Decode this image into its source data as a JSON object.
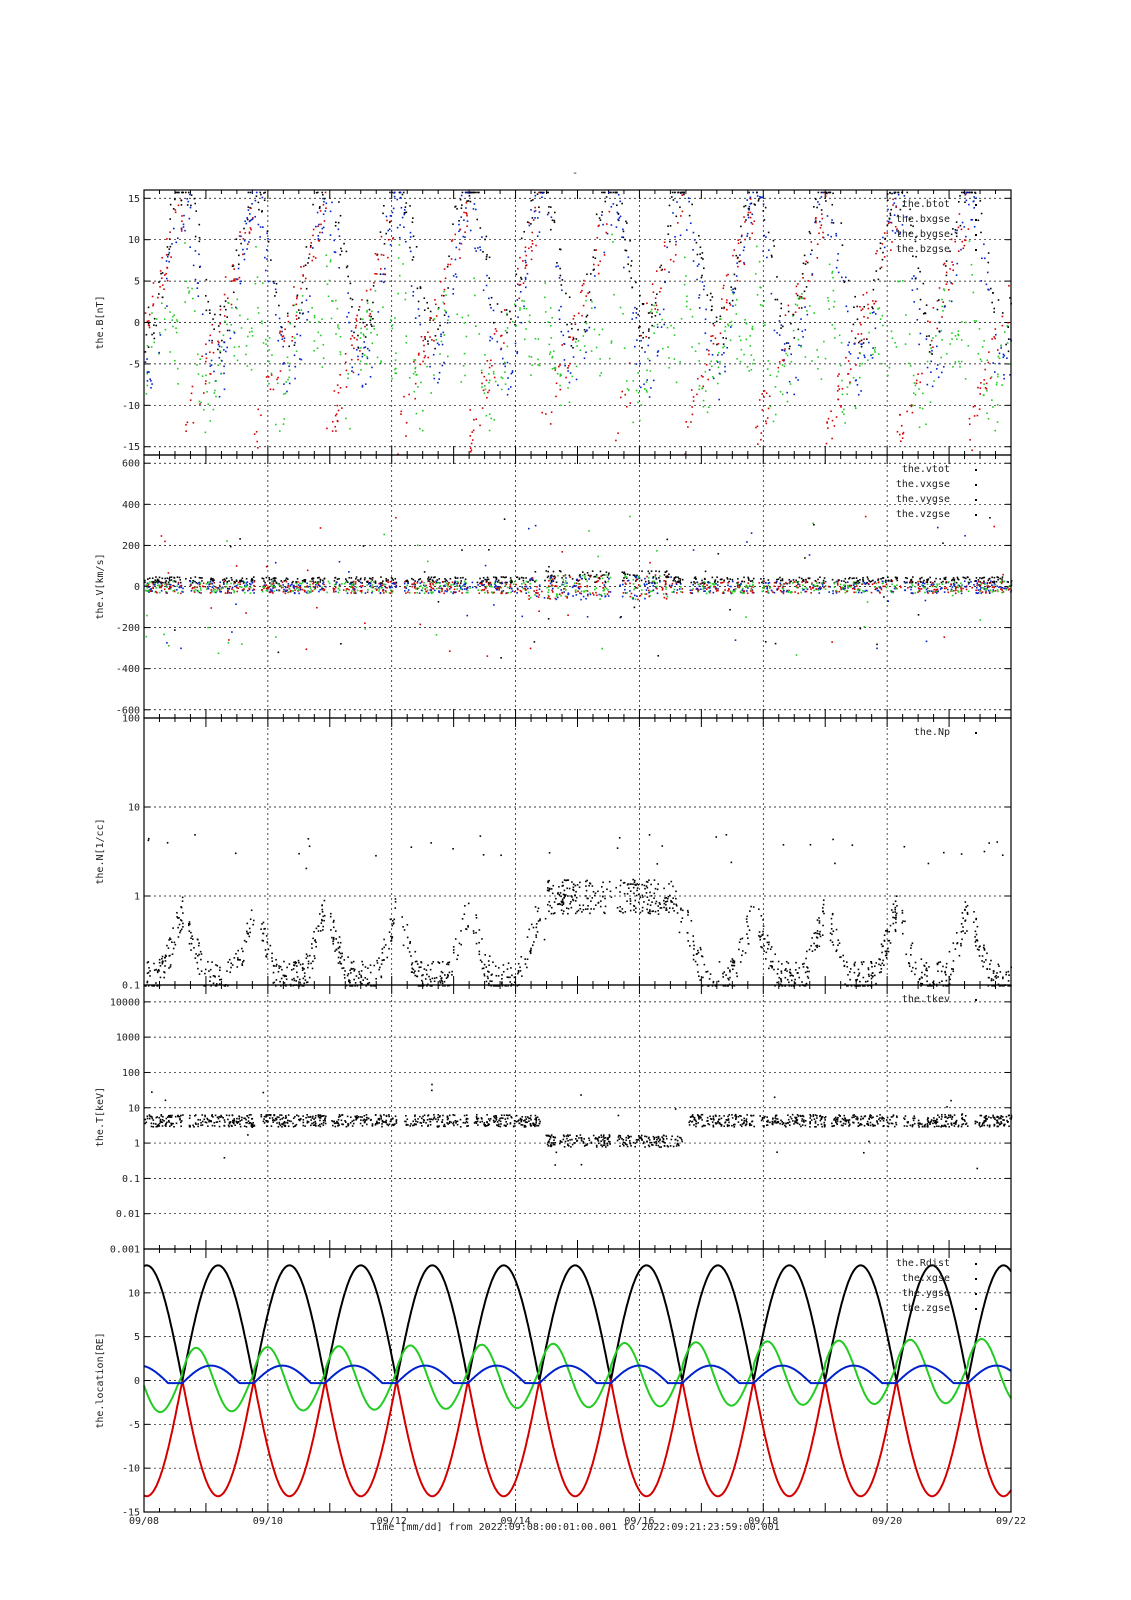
{
  "title": "-",
  "xaxis": {
    "labels": [
      "09/08",
      "09/10",
      "09/12",
      "09/14",
      "09/16",
      "09/18",
      "09/20",
      "09/22"
    ],
    "footer": "Time [mm/dd]  from 2022:09:08:00:01:00.001  to  2022:09:21:23:59:00.001"
  },
  "colors": {
    "black": "#000000",
    "red": "#d40000",
    "green": "#22cc22",
    "blue": "#0022cc"
  },
  "chart_data": [
    {
      "type": "scatter",
      "id": "B",
      "ylabel": "the.B[nT]",
      "ylim": [
        -16,
        16
      ],
      "scale": "linear",
      "yticks": [
        {
          "v": 15,
          "label": "15"
        },
        {
          "v": 10,
          "label": "10"
        },
        {
          "v": 5,
          "label": "5"
        },
        {
          "v": 0,
          "label": "0"
        },
        {
          "v": -5,
          "label": "-5"
        },
        {
          "v": -10,
          "label": "-10"
        },
        {
          "v": -15,
          "label": "-15"
        }
      ],
      "grid": true,
      "legend": "top-right",
      "series": [
        {
          "name": "the.btot",
          "color": "#000000"
        },
        {
          "name": "the.bxgse",
          "color": "#d40000"
        },
        {
          "name": "the.bygse",
          "color": "#22cc22"
        },
        {
          "name": "the.bzgse",
          "color": "#0022cc"
        }
      ]
    },
    {
      "type": "scatter",
      "id": "V",
      "ylabel": "the.V[km/s]",
      "ylim": [
        -640,
        640
      ],
      "scale": "linear",
      "yticks": [
        {
          "v": 600,
          "label": "600"
        },
        {
          "v": 400,
          "label": "400"
        },
        {
          "v": 200,
          "label": "200"
        },
        {
          "v": 0,
          "label": "0"
        },
        {
          "v": -200,
          "label": "-200"
        },
        {
          "v": -400,
          "label": "-400"
        },
        {
          "v": -600,
          "label": "-600"
        }
      ],
      "grid": true,
      "legend": "top-right",
      "series": [
        {
          "name": "the.vtot",
          "color": "#000000"
        },
        {
          "name": "the.vxgse",
          "color": "#d40000"
        },
        {
          "name": "the.vygse",
          "color": "#22cc22"
        },
        {
          "name": "the.vzgse",
          "color": "#0022cc"
        }
      ]
    },
    {
      "type": "scatter",
      "id": "N",
      "ylabel": "the.N[1/cc]",
      "ylim": [
        0.1,
        100
      ],
      "scale": "log",
      "yticks": [
        {
          "v": 100,
          "label": "100"
        },
        {
          "v": 10,
          "label": "10"
        },
        {
          "v": 1,
          "label": "1"
        },
        {
          "v": 0.1,
          "label": "0.1"
        }
      ],
      "grid": true,
      "legend": "top-right",
      "series": [
        {
          "name": "the.Np",
          "color": "#000000"
        }
      ]
    },
    {
      "type": "scatter",
      "id": "T",
      "ylabel": "the.T[keV]",
      "ylim": [
        0.001,
        30000
      ],
      "scale": "log",
      "yticks": [
        {
          "v": 10000,
          "label": "10000"
        },
        {
          "v": 1000,
          "label": "1000"
        },
        {
          "v": 100,
          "label": "100"
        },
        {
          "v": 10,
          "label": "10"
        },
        {
          "v": 1,
          "label": "1"
        },
        {
          "v": 0.1,
          "label": "0.1"
        },
        {
          "v": 0.01,
          "label": "0.01"
        },
        {
          "v": 0.001,
          "label": "0.001"
        }
      ],
      "grid": true,
      "legend": "top-right",
      "series": [
        {
          "name": "the.tkev",
          "color": "#000000"
        }
      ]
    },
    {
      "type": "line",
      "id": "L",
      "ylabel": "the.location[RE]",
      "ylim": [
        -15,
        15
      ],
      "scale": "linear",
      "yticks": [
        {
          "v": 10,
          "label": "10"
        },
        {
          "v": 5,
          "label": "5"
        },
        {
          "v": 0,
          "label": "0"
        },
        {
          "v": -5,
          "label": "-5"
        },
        {
          "v": -10,
          "label": "-10"
        },
        {
          "v": -15,
          "label": "-15"
        }
      ],
      "grid": true,
      "legend": "top-right",
      "series": [
        {
          "name": "the.Rdist",
          "color": "#000000"
        },
        {
          "name": "the.xgse",
          "color": "#d40000"
        },
        {
          "name": "the.ygse",
          "color": "#22cc22"
        },
        {
          "name": "the.zgse",
          "color": "#0022cc"
        }
      ]
    }
  ]
}
